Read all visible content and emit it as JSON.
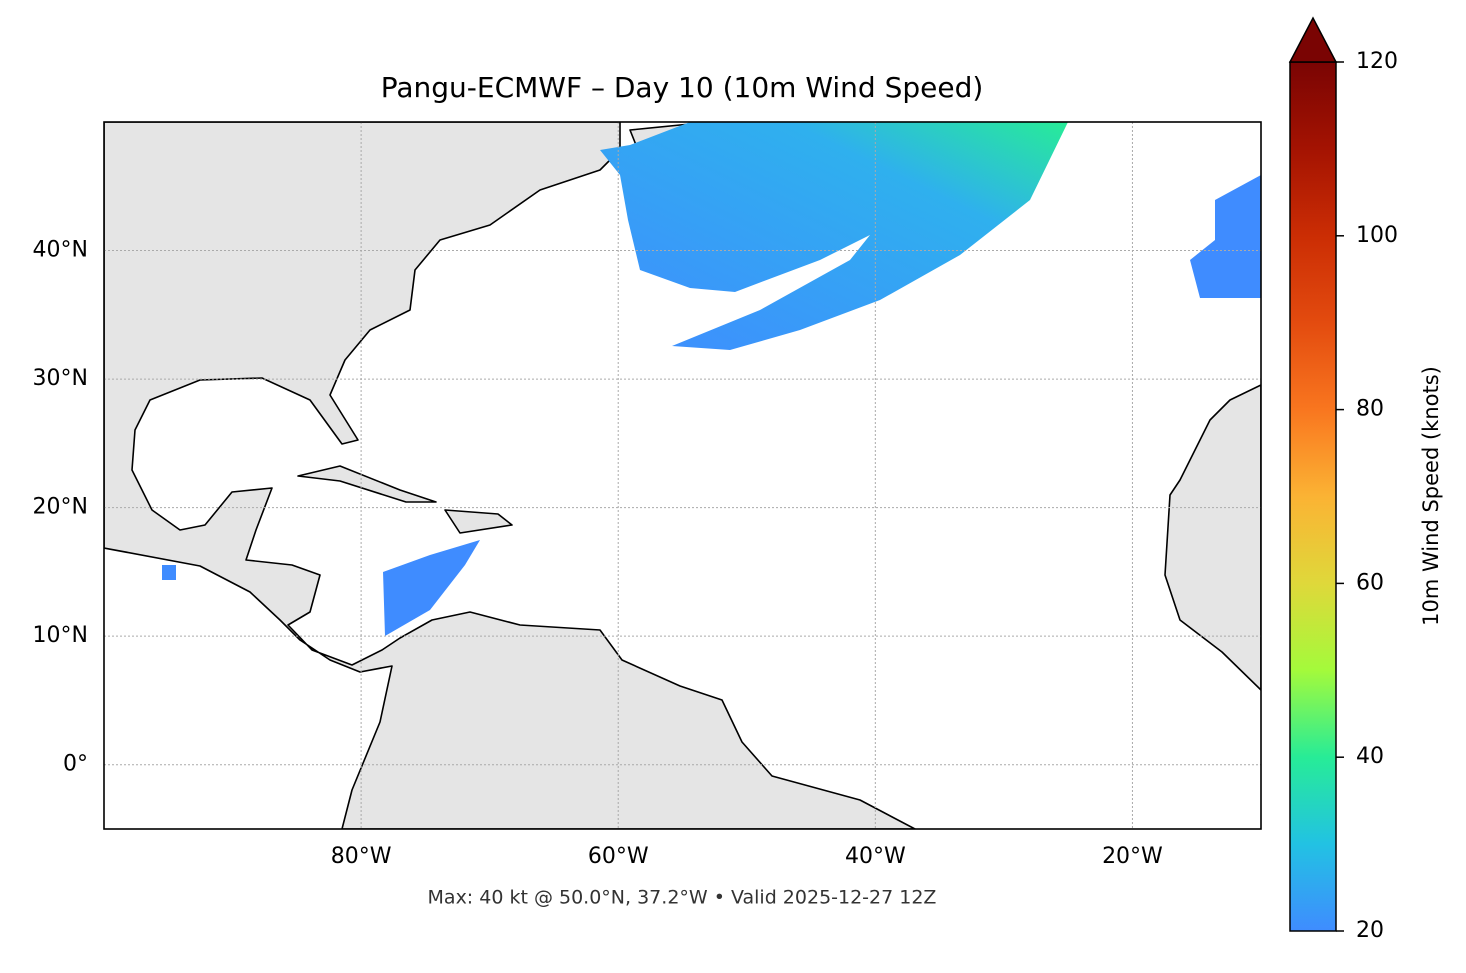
{
  "chart_data": {
    "type": "map",
    "title": "Pangu-ECMWF – Day 10 (10m Wind Speed)",
    "xlim": [
      -100,
      -10
    ],
    "ylim": [
      -5,
      50
    ],
    "xticks": [
      {
        "value": -80,
        "label": "80°W"
      },
      {
        "value": -60,
        "label": "60°W"
      },
      {
        "value": -40,
        "label": "40°W"
      },
      {
        "value": -20,
        "label": "20°W"
      }
    ],
    "yticks": [
      {
        "value": 0,
        "label": "0°"
      },
      {
        "value": 10,
        "label": "10°N"
      },
      {
        "value": 20,
        "label": "20°N"
      },
      {
        "value": 30,
        "label": "30°N"
      },
      {
        "value": 40,
        "label": "40°N"
      }
    ],
    "grid": true,
    "colorbar": {
      "label": "10m Wind Speed (knots)",
      "lim": [
        20,
        120
      ],
      "ticks": [
        20,
        40,
        60,
        80,
        100,
        120
      ],
      "colors": [
        "#3f8cff",
        "#22c2e3",
        "#27ec97",
        "#a4fa3b",
        "#dfd83a",
        "#fbb334",
        "#f9761f",
        "#e34b0f",
        "#cb2d04",
        "#a41302",
        "#7a0403"
      ]
    },
    "footnote": "Max: 40 kt @ 50.0°N, 37.2°W • Valid 2025-12-27 12Z"
  }
}
